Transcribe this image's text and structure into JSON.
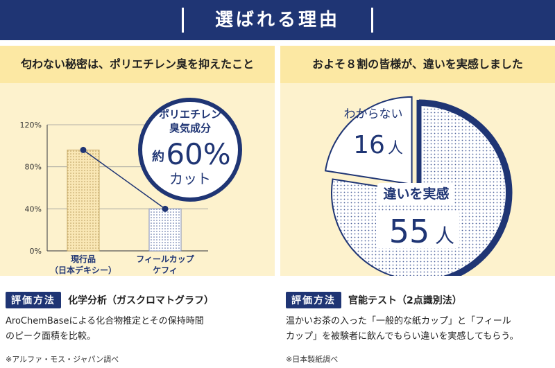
{
  "header": {
    "title": "選ばれる理由",
    "bg_color": "#1f3574"
  },
  "left": {
    "heading": "匂わない秘密は、ポリエチレン臭を抑えたこと",
    "callout": {
      "line1": "ポリエチレン",
      "line2": "臭気成分",
      "prefix": "約",
      "value": "60%",
      "suffix": "カット"
    },
    "method_badge": "評価方法",
    "method_text": "化学分析（ガスクロマトグラフ）",
    "desc_line1": "AroChemBaseによる化合物推定とその保持時間",
    "desc_line2": "のピーク面積を比較。",
    "note": "※アルファ・モス・ジャパン調べ"
  },
  "right": {
    "heading": "およそ８割の皆様が、違いを実感しました",
    "method_badge": "評価方法",
    "method_text": "官能テスト（2点識別法）",
    "desc_line1": "温かいお茶の入った「一般的な紙カップ」と「フィール",
    "desc_line2": "カップ」を被験者に飲んでもらい違いを実感してもらう。",
    "note": "※日本製紙調べ"
  },
  "chart_data": [
    {
      "type": "bar",
      "categories": [
        {
          "line1": "現行品",
          "line2": "（日本デキシー）"
        },
        {
          "line1": "フィールカップ",
          "line2": "ケフィ"
        }
      ],
      "values": [
        96,
        40
      ],
      "yticks": [
        "0%",
        "40%",
        "80%",
        "120%"
      ],
      "ytick_values": [
        0,
        40,
        80,
        120
      ],
      "ylim": [
        0,
        120
      ],
      "grid": true,
      "connector_line": true
    },
    {
      "type": "pie",
      "slices": [
        {
          "label": "違いを実感",
          "value": 55,
          "unit": "人",
          "exploded": false
        },
        {
          "label": "わからない",
          "value": 16,
          "unit": "人",
          "exploded": true
        }
      ],
      "colors": {
        "navy": "#1f3574",
        "dot": "#5a6aa0"
      }
    }
  ]
}
